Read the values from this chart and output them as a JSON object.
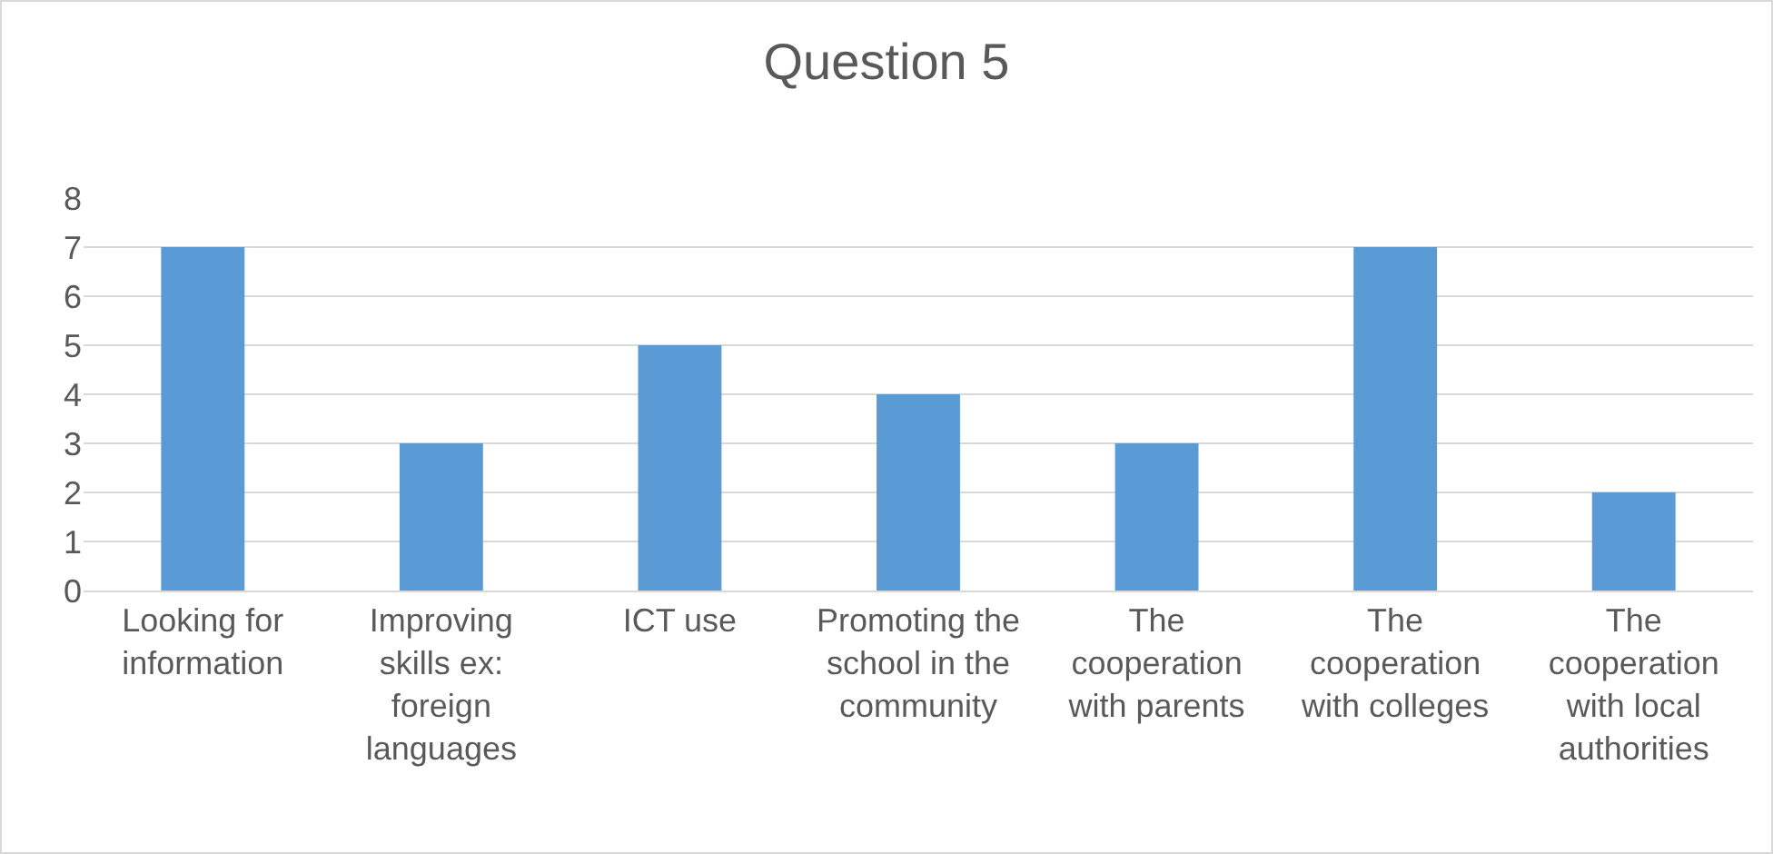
{
  "chart_data": {
    "type": "bar",
    "title": "Question 5",
    "categories": [
      "Looking for information",
      "Improving skills ex: foreign languages",
      "ICT use",
      "Promoting the school in the community",
      "The cooperation with parents",
      "The cooperation with colleges",
      "The cooperation with local authorities"
    ],
    "values": [
      7,
      3,
      5,
      4,
      3,
      7,
      2
    ],
    "color": "#5b9bd5",
    "ylim": [
      0,
      8
    ],
    "yticks": [
      0,
      1,
      2,
      3,
      4,
      5,
      6,
      7,
      8
    ],
    "grid": "y",
    "legend": false
  }
}
